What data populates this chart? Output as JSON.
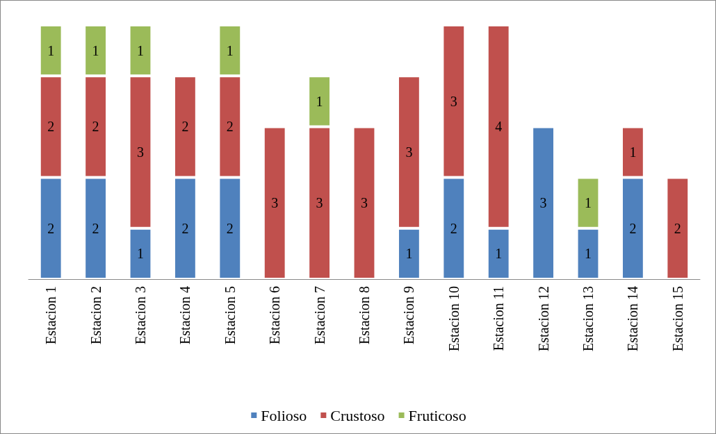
{
  "chart_data": {
    "type": "bar",
    "stacked": true,
    "data_labels": true,
    "legend": "bottom",
    "categories": [
      "Estacion 1",
      "Estacion 2",
      "Estacion 3",
      "Estacion 4",
      "Estacion 5",
      "Estacion 6",
      "Estacion 7",
      "Estacion 8",
      "Estacion 9",
      "Estacion 10",
      "Estacion 11",
      "Estacion 12",
      "Estacion 13",
      "Estacion 14",
      "Estacion 15"
    ],
    "series": [
      {
        "name": "Folioso",
        "color": "#4f81bd",
        "values": [
          2,
          2,
          1,
          2,
          2,
          null,
          null,
          null,
          1,
          2,
          1,
          3,
          1,
          2,
          null
        ]
      },
      {
        "name": "Crustoso",
        "color": "#c0504d",
        "values": [
          2,
          2,
          3,
          2,
          2,
          3,
          3,
          3,
          3,
          3,
          4,
          null,
          null,
          1,
          2
        ]
      },
      {
        "name": "Fruticoso",
        "color": "#9bbb59",
        "values": [
          1,
          1,
          1,
          null,
          1,
          null,
          1,
          null,
          null,
          null,
          null,
          null,
          1,
          null,
          null
        ]
      }
    ]
  }
}
